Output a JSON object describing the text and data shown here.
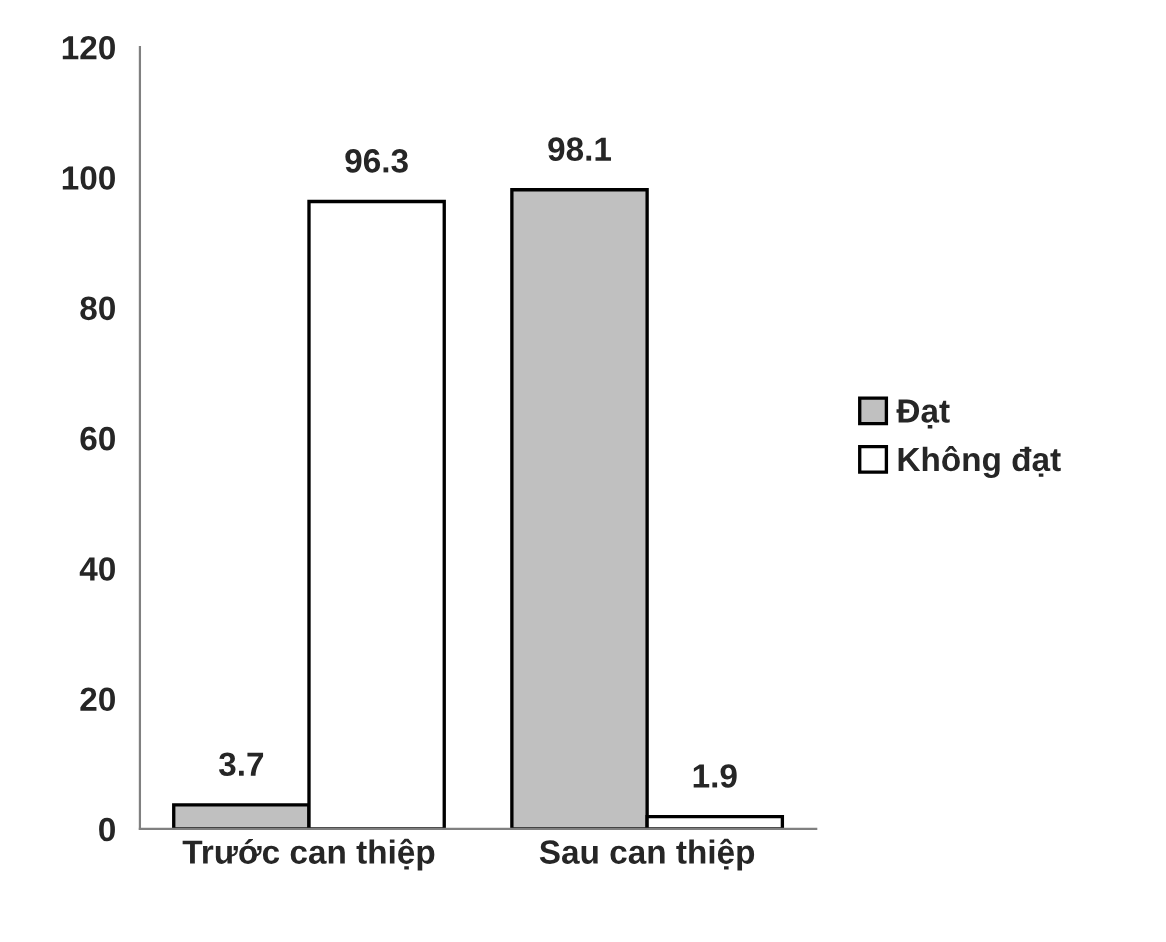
{
  "chart_data": {
    "type": "bar",
    "categories": [
      "Trước can thiệp",
      "Sau can thiệp"
    ],
    "series": [
      {
        "name": "Đạt",
        "color": "#c0c0c0",
        "values": [
          3.7,
          98.1
        ]
      },
      {
        "name": "Không đạt",
        "color": "#ffffff",
        "values": [
          96.3,
          1.9
        ]
      }
    ],
    "ylim": [
      0,
      120
    ],
    "yticks": [
      0,
      20,
      40,
      60,
      80,
      100,
      120
    ],
    "data_labels": true,
    "grid": false,
    "legend": "right"
  }
}
